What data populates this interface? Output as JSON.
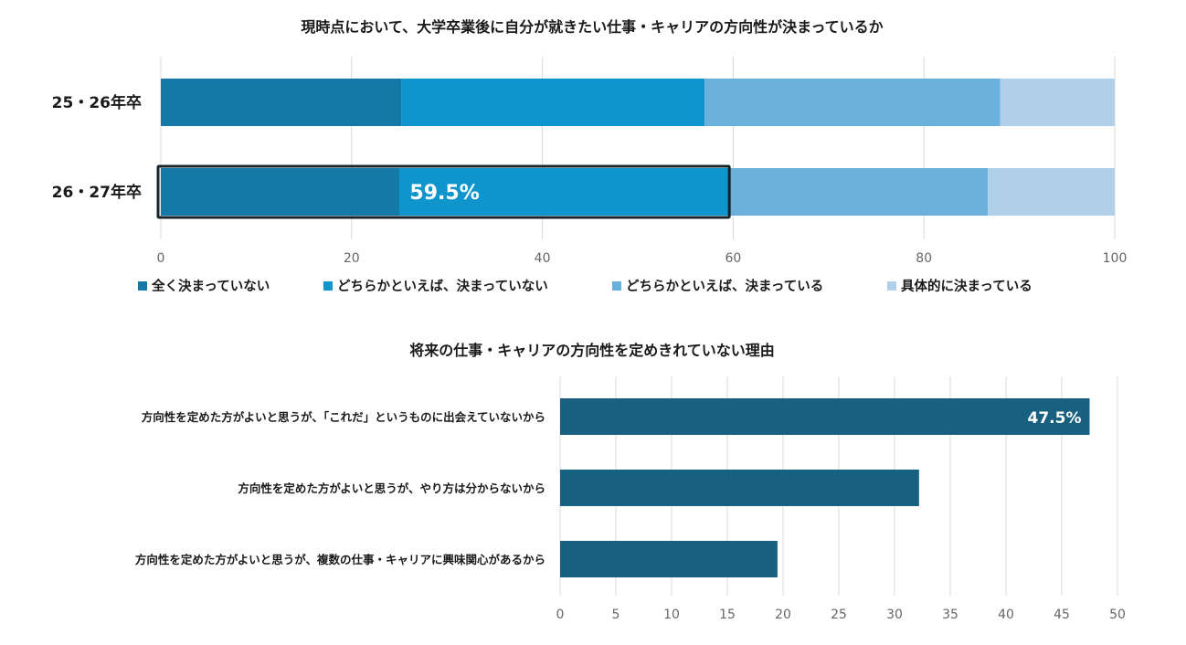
{
  "chart_data": [
    {
      "type": "bar",
      "orientation": "horizontal",
      "stacked": true,
      "title": "現時点において、大学卒業後に自分が就きたい仕事・キャリアの方向性が決まっているか",
      "categories": [
        "25・26年卒",
        "26・27年卒"
      ],
      "series": [
        {
          "name": "全く決まっていない",
          "color": "#1479a6",
          "values": [
            25.2,
            25.0
          ]
        },
        {
          "name": "どちらかといえば、決まっていない",
          "color": "#0f94cc",
          "values": [
            31.8,
            34.5
          ]
        },
        {
          "name": "どちらかといえば、決まっている",
          "color": "#6ab0dc",
          "values": [
            31.0,
            27.2
          ]
        },
        {
          "name": "具体的に決まっている",
          "color": "#b0d0ea",
          "values": [
            12.0,
            13.3
          ]
        }
      ],
      "xlim": [
        0,
        100
      ],
      "xticks": [
        "0",
        "20",
        "40",
        "60",
        "80",
        "100"
      ],
      "grid": true,
      "legend_position": "bottom",
      "annotation": {
        "label": "59.5%",
        "category": "26・27年卒",
        "value": 59.5
      }
    },
    {
      "type": "bar",
      "orientation": "horizontal",
      "title": "将来の仕事・キャリアの方向性を定めきれていない理由",
      "categories": [
        "方向性を定めた方がよいと思うが、「これだ」というものに出会えていないから",
        "方向性を定めた方がよいと思うが、やり方は分からないから",
        "方向性を定めた方がよいと思うが、複数の仕事・キャリアに興味関心があるから"
      ],
      "values": [
        47.5,
        32.2,
        19.5
      ],
      "color": "#18607f",
      "xlim": [
        0,
        50
      ],
      "xticks": [
        "0",
        "5",
        "10",
        "15",
        "20",
        "25",
        "30",
        "35",
        "40",
        "45",
        "50"
      ],
      "grid": true,
      "data_label": "47.5%"
    }
  ]
}
